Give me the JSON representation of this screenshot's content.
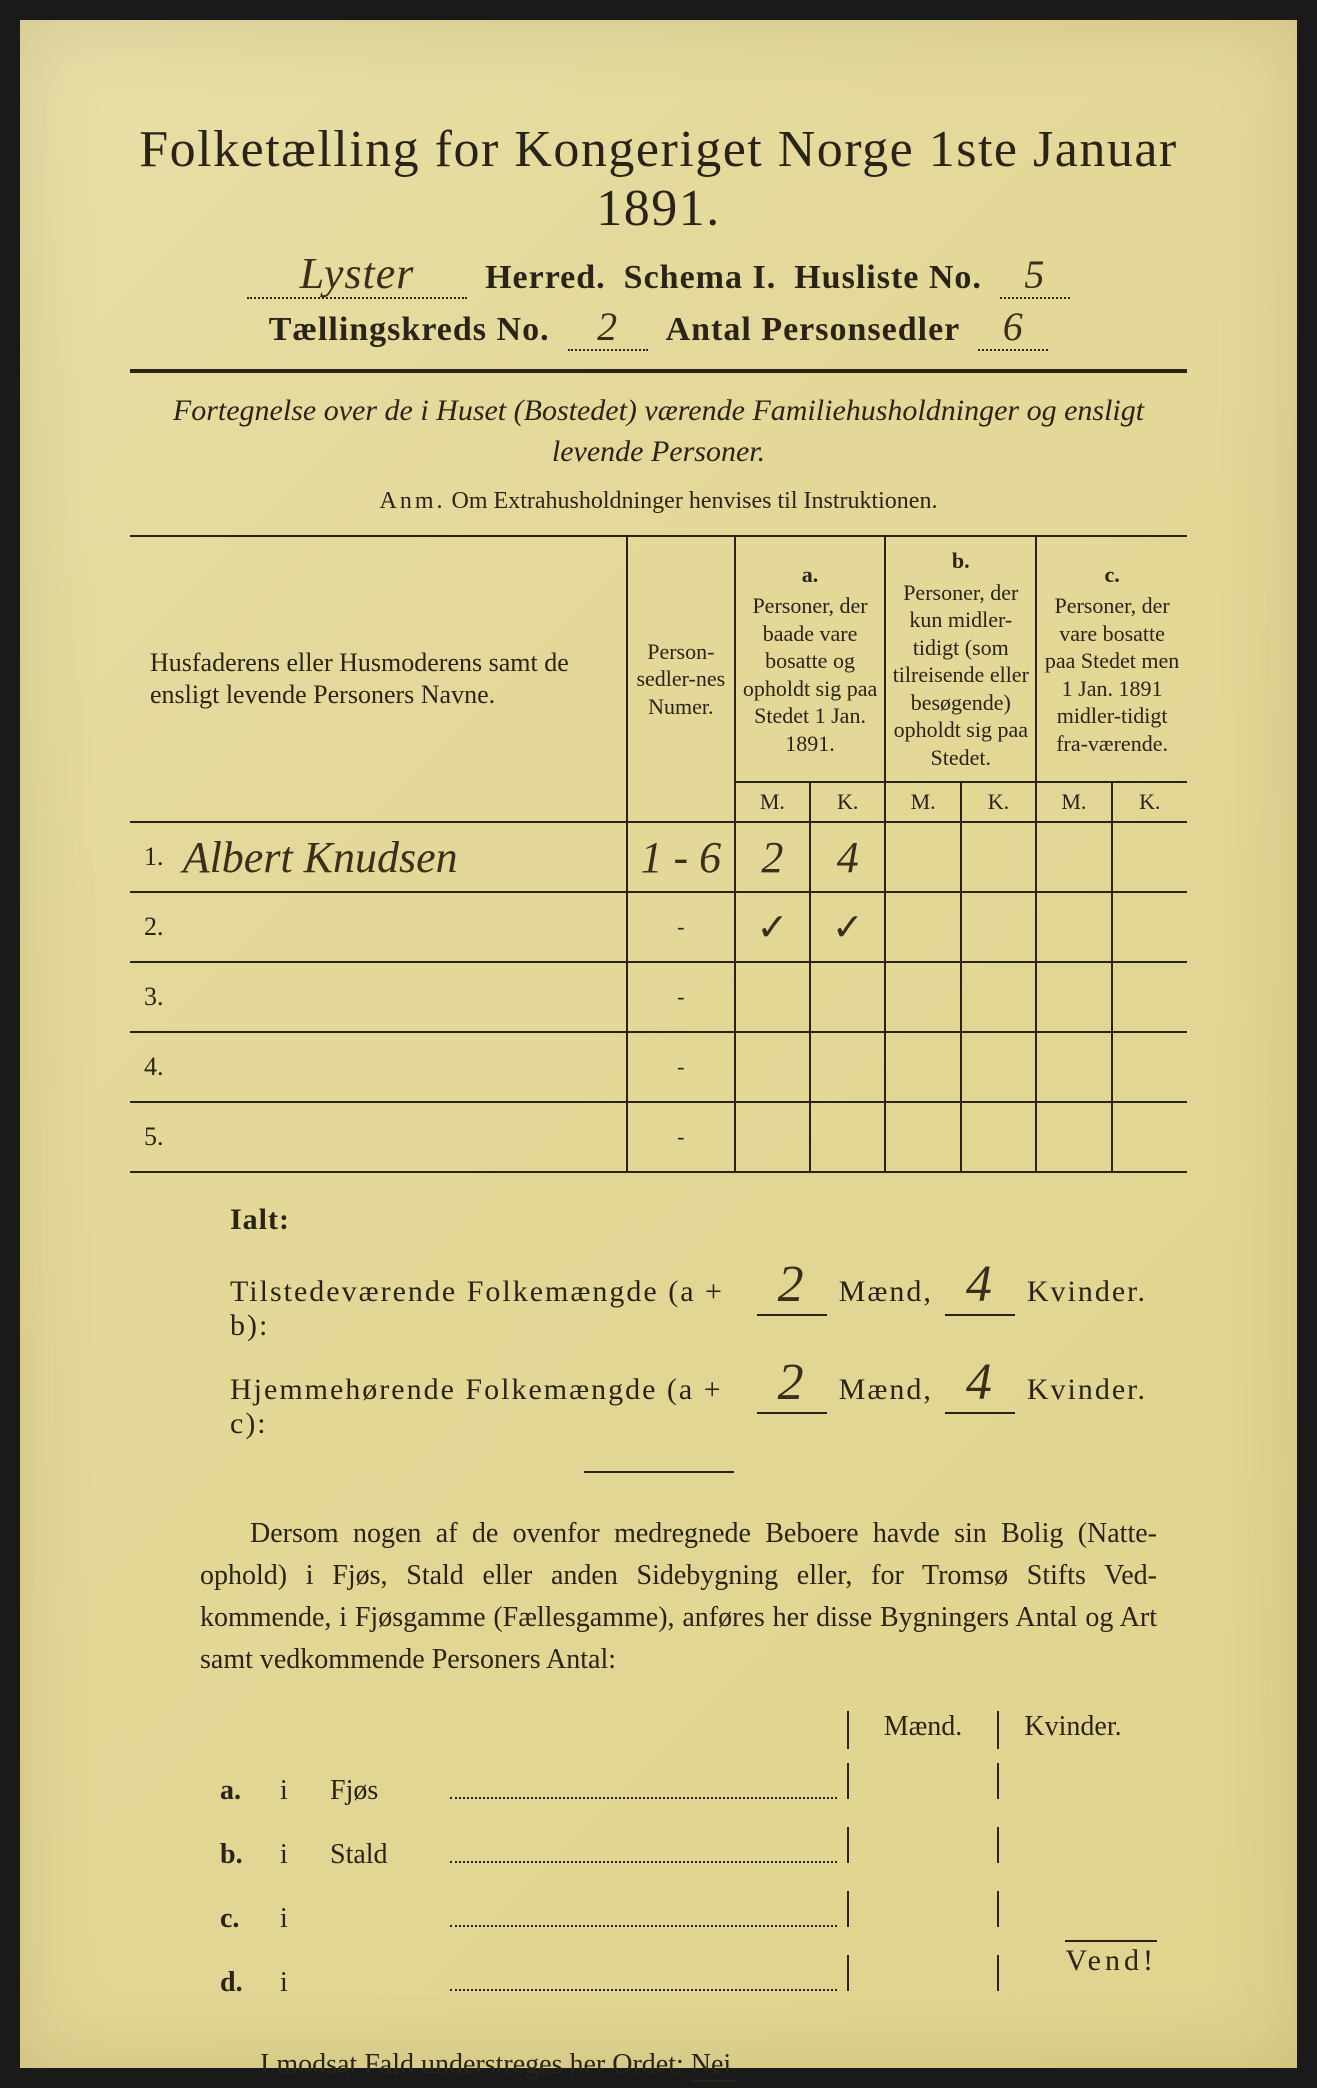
{
  "title": "Folketælling for Kongeriget Norge 1ste Januar 1891.",
  "header": {
    "herred_value": "Lyster",
    "herred_label": "Herred.",
    "schema_label": "Schema I.",
    "husliste_label": "Husliste No.",
    "husliste_value": "5",
    "kredsLabel": "Tællingskreds No.",
    "kredsValue": "2",
    "antalLabel": "Antal Personsedler",
    "antalValue": "6"
  },
  "intro": {
    "text_italic": "Fortegnelse over de i Huset (Bostedet) værende Familiehusholdninger og ensligt levende Personer.",
    "anm_label": "Anm.",
    "anm_text": "Om Extrahusholdninger henvises til Instruktionen."
  },
  "table": {
    "col_name": "Husfaderens eller Husmoderens samt de ensligt levende Personers Navne.",
    "col_num": "Person-sedler-nes Numer.",
    "col_a_label": "a.",
    "col_a": "Personer, der baade vare bosatte og opholdt sig paa Stedet 1 Jan. 1891.",
    "col_b_label": "b.",
    "col_b": "Personer, der kun midler-tidigt (som tilreisende eller besøgende) opholdt sig paa Stedet.",
    "col_c_label": "c.",
    "col_c": "Personer, der vare bosatte paa Stedet men 1 Jan. 1891 midler-tidigt fra-værende.",
    "mk_m": "M.",
    "mk_k": "K.",
    "rows": [
      {
        "n": "1.",
        "name": "Albert Knudsen",
        "num": "1 - 6",
        "a_m": "2",
        "a_k": "4"
      },
      {
        "n": "2.",
        "name": "",
        "num": "-",
        "a_m": "✓",
        "a_k": "✓"
      },
      {
        "n": "3.",
        "name": "",
        "num": "-",
        "a_m": "",
        "a_k": ""
      },
      {
        "n": "4.",
        "name": "",
        "num": "-",
        "a_m": "",
        "a_k": ""
      },
      {
        "n": "5.",
        "name": "",
        "num": "-",
        "a_m": "",
        "a_k": ""
      }
    ]
  },
  "ialt": {
    "title": "Ialt:",
    "line1_label": "Tilstedeværende Folkemængde (a + b):",
    "line2_label": "Hjemmehørende Folkemængde (a + c):",
    "maend": "Mænd,",
    "kvinder": "Kvinder.",
    "l1_m": "2",
    "l1_k": "4",
    "l2_m": "2",
    "l2_k": "4"
  },
  "paragraph": "Dersom nogen af de ovenfor medregnede Beboere havde sin Bolig (Natte-ophold) i Fjøs, Stald eller anden Sidebygning eller, for Tromsø Stifts Ved-kommende, i Fjøsgamme (Fællesgamme), anføres her disse Bygningers Antal og Art samt vedkommende Personers Antal:",
  "lower": {
    "head_m": "Mænd.",
    "head_k": "Kvinder.",
    "rows": [
      {
        "lbl": "a.",
        "loc": "Fjøs"
      },
      {
        "lbl": "b.",
        "loc": "Stald"
      },
      {
        "lbl": "c.",
        "loc": ""
      },
      {
        "lbl": "d.",
        "loc": ""
      }
    ]
  },
  "nei": {
    "prefix": "I modsat Fald understreges her Ordet: ",
    "word": "Nei."
  },
  "vend": "Vend!",
  "colors": {
    "paper": "#e4d99a",
    "ink": "#2a2418",
    "handwriting": "#3a2f1a"
  }
}
